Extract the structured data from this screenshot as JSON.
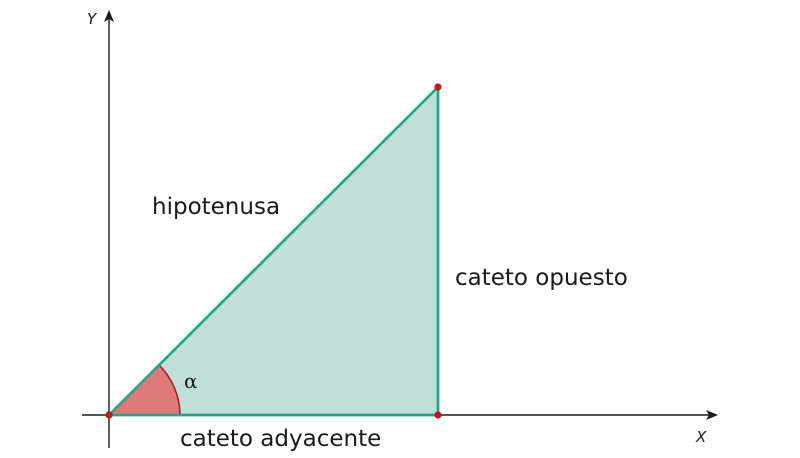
{
  "axes": {
    "x_label": "X",
    "y_label": "Y"
  },
  "labels": {
    "hypotenuse": "hipotenusa",
    "opposite": "cateto opuesto",
    "adjacent": "cateto adyacente",
    "angle": "α"
  },
  "colors": {
    "triangle_fill": "#c0dfd6",
    "triangle_stroke": "#1aab8a",
    "angle_fill": "#e07a7a",
    "angle_stroke": "#c0152a",
    "vertex": "#d0101f",
    "axis": "#1a1a1a"
  }
}
